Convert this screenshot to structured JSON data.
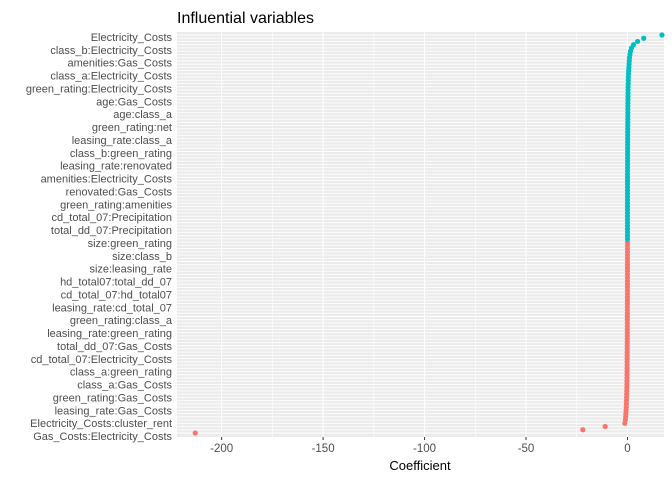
{
  "chart_data": {
    "type": "scatter",
    "title": "Influential variables",
    "xlabel": "Coefficient",
    "ylabel": "",
    "xlim": [
      -222,
      18
    ],
    "xticks": [
      -200,
      -150,
      -100,
      -50,
      0
    ],
    "grid": true,
    "legend": "none",
    "colors": {
      "positive": "#00BFC4",
      "negative": "#F8766D",
      "panel": "#EBEBEB",
      "grid": "#FFFFFF"
    },
    "categories": [
      "Gas_Costs:Electricity_Costs",
      "Electricity_Costs:cluster_rent",
      "leasing_rate:Gas_Costs",
      "green_rating:Gas_Costs",
      "class_a:Gas_Costs",
      "class_a:green_rating",
      "cd_total_07:Electricity_Costs",
      "total_dd_07:Gas_Costs",
      "leasing_rate:green_rating",
      "green_rating:class_a",
      "leasing_rate:cd_total_07",
      "cd_total_07:hd_total07",
      "hd_total07:total_dd_07",
      "size:leasing_rate",
      "size:class_b",
      "size:green_rating",
      "total_dd_07:Precipitation",
      "cd_total_07:Precipitation",
      "green_rating:amenities",
      "renovated:Gas_Costs",
      "amenities:Electricity_Costs",
      "leasing_rate:renovated",
      "class_b:green_rating",
      "leasing_rate:class_a",
      "green_rating:net",
      "age:class_a",
      "age:Gas_Costs",
      "green_rating:Electricity_Costs",
      "class_a:Electricity_Costs",
      "amenities:Gas_Costs",
      "class_b:Electricity_Costs",
      "Electricity_Costs"
    ],
    "series": [
      {
        "x": [
          -213,
          -22,
          -11,
          -1.3,
          -1.0,
          -0.9,
          -0.8,
          -0.7,
          -0.6,
          -0.55,
          -0.5,
          -0.45,
          -0.4,
          -0.35,
          -0.3,
          -0.28,
          -0.26,
          -0.24,
          -0.22,
          -0.2,
          -0.19,
          -0.18,
          -0.17,
          -0.16,
          -0.15,
          -0.14,
          -0.13,
          -0.12,
          -0.11,
          -0.1,
          -0.09,
          -0.08,
          -0.075,
          -0.07,
          -0.065,
          -0.06,
          -0.055,
          -0.05,
          -0.045,
          -0.04,
          -0.035,
          -0.03,
          -0.025,
          -0.02,
          -0.018,
          -0.016,
          -0.014,
          -0.012,
          -0.01,
          -0.008,
          -0.006,
          -0.005,
          -0.004,
          -0.003,
          -0.002,
          -0.0015,
          -0.001,
          -0.0005,
          -0.0002,
          -0.0001,
          0.0001,
          0.0002,
          0.0004,
          0.0006,
          0.0008,
          0.001,
          0.0015,
          0.002,
          0.003,
          0.004,
          0.005,
          0.006,
          0.008,
          0.01,
          0.012,
          0.014,
          0.016,
          0.018,
          0.02,
          0.025,
          0.03,
          0.035,
          0.04,
          0.045,
          0.05,
          0.055,
          0.06,
          0.065,
          0.07,
          0.075,
          0.08,
          0.09,
          0.1,
          0.11,
          0.12,
          0.13,
          0.14,
          0.15,
          0.16,
          0.17,
          0.18,
          0.19,
          0.2,
          0.22,
          0.24,
          0.26,
          0.28,
          0.3,
          0.35,
          0.4,
          0.45,
          0.5,
          0.6,
          0.7,
          0.8,
          0.9,
          1.0,
          1.2,
          1.5,
          2.0,
          3.0,
          5.0,
          8.0,
          17.0
        ]
      }
    ]
  }
}
